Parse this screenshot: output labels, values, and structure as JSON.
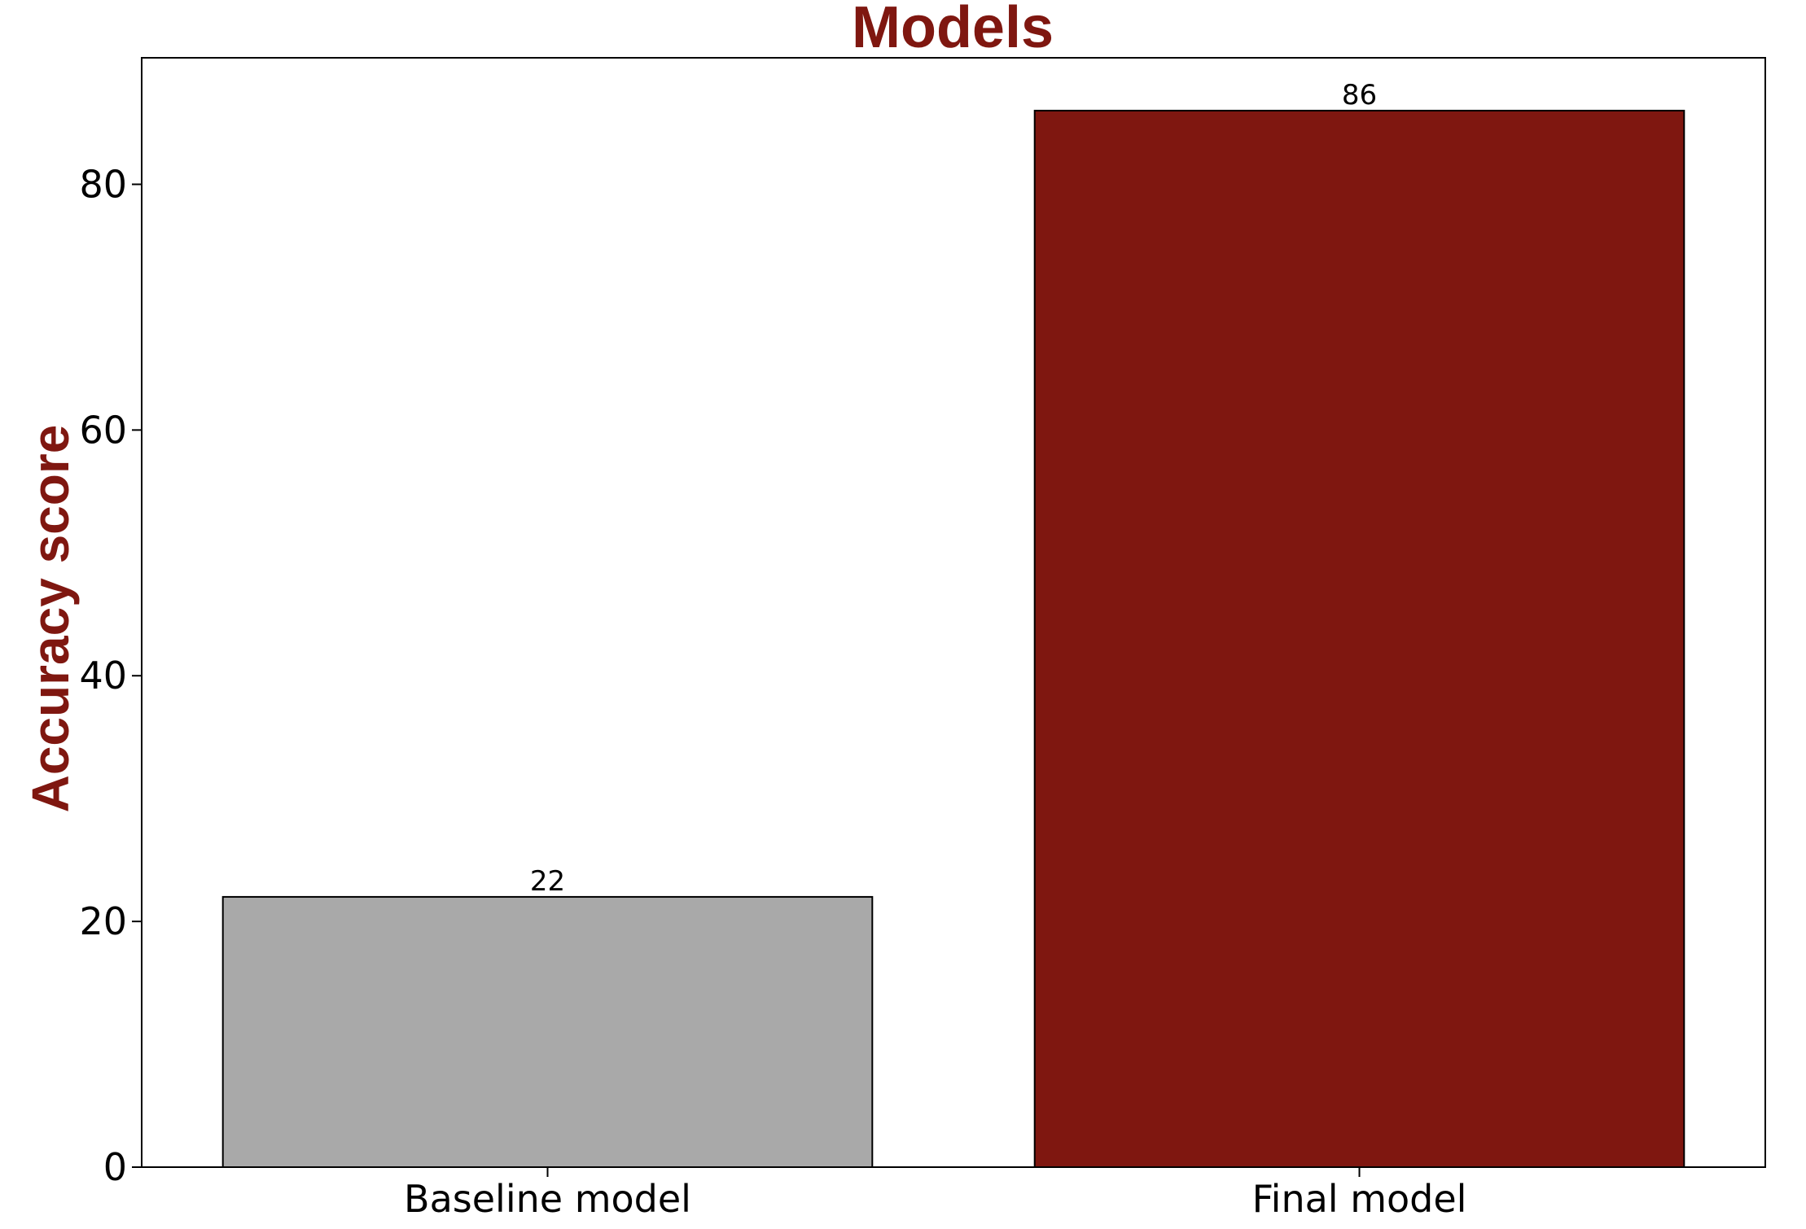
{
  "chart_data": {
    "type": "bar",
    "title": "Models",
    "xlabel": "",
    "ylabel": "Accuracy score",
    "categories": [
      "Baseline model",
      "Final model"
    ],
    "values": [
      22,
      86
    ],
    "data_labels": [
      "22",
      "86"
    ],
    "bar_colors": [
      "#a9a9a9",
      "#7f1710"
    ],
    "title_color": "#7f1710",
    "ylim": [
      0,
      90.3
    ],
    "yticks": [
      0,
      20,
      40,
      60,
      80
    ],
    "ytick_labels": [
      "0",
      "20",
      "40",
      "60",
      "80"
    ],
    "grid": false,
    "legend": "none"
  }
}
